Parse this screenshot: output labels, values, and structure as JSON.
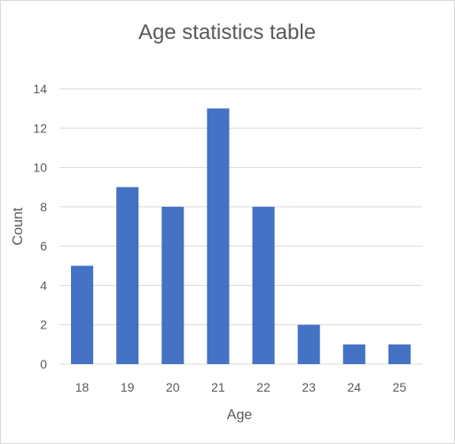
{
  "chart_data": {
    "type": "bar",
    "title": "Age statistics table",
    "xlabel": "Age",
    "ylabel": "Count",
    "categories": [
      "18",
      "19",
      "20",
      "21",
      "22",
      "23",
      "24",
      "25"
    ],
    "values": [
      5,
      9,
      8,
      13,
      8,
      2,
      1,
      1
    ],
    "ylim": [
      0,
      14
    ],
    "yticks": [
      "0",
      "2",
      "4",
      "6",
      "8",
      "10",
      "12",
      "14"
    ],
    "grid": true,
    "legend": "none",
    "colors": {
      "bar": "#4472c4",
      "grid": "#d9d9d9",
      "text": "#595959"
    }
  }
}
